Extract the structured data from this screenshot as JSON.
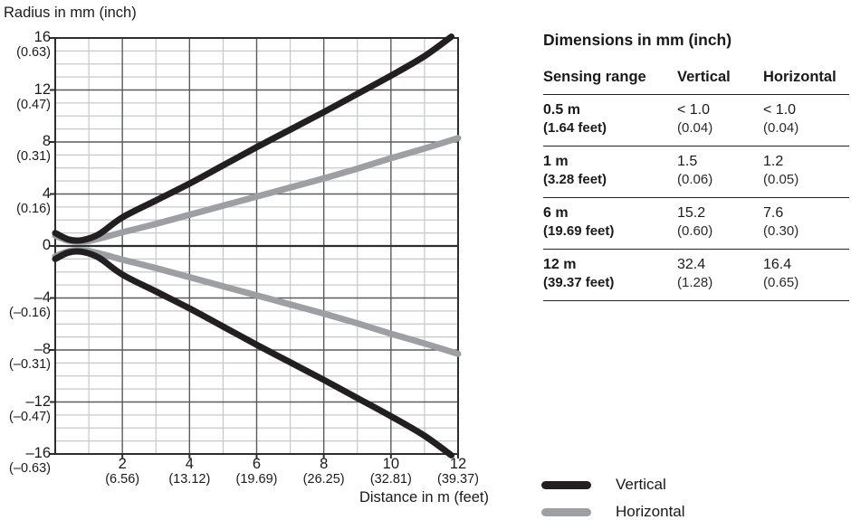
{
  "chart": {
    "title": "Radius in mm (inch)",
    "xlabel": "Distance in m (feet)",
    "y_ticks": [
      {
        "value": 16,
        "mm": "16",
        "inch": "(0.63)"
      },
      {
        "value": 12,
        "mm": "12",
        "inch": "(0.47)"
      },
      {
        "value": 8,
        "mm": "8",
        "inch": "(0.31)"
      },
      {
        "value": 4,
        "mm": "4",
        "inch": "(0.16)"
      },
      {
        "value": 0,
        "mm": "0",
        "inch": ""
      },
      {
        "value": -4,
        "mm": "–4",
        "inch": "(–0.16)"
      },
      {
        "value": -8,
        "mm": "–8",
        "inch": "(–0.31)"
      },
      {
        "value": -12,
        "mm": "–12",
        "inch": "(–0.47)"
      },
      {
        "value": -16,
        "mm": "–16",
        "inch": "(–0.63)"
      }
    ],
    "x_ticks": [
      {
        "value": 2,
        "m": "2",
        "feet": "(6.56)"
      },
      {
        "value": 4,
        "m": "4",
        "feet": "(13.12)"
      },
      {
        "value": 6,
        "m": "6",
        "feet": "(19.69)"
      },
      {
        "value": 8,
        "m": "8",
        "feet": "(26.25)"
      },
      {
        "value": 10,
        "m": "10",
        "feet": "(32.81)"
      },
      {
        "value": 12,
        "m": "12",
        "feet": "(39.37)"
      }
    ]
  },
  "chart_data": {
    "type": "line",
    "title": "Light spot radius vs sensing distance",
    "xlabel": "Distance in m (feet)",
    "ylabel": "Radius in mm (inch)",
    "xlim": [
      0,
      12
    ],
    "ylim": [
      -16,
      16
    ],
    "x_major_step": 2,
    "x_minor_step": 1,
    "y_major_step": 4,
    "y_minor_step": 1,
    "grid": true,
    "legend_position": "bottom-right",
    "mirrored_about_zero": true,
    "series": [
      {
        "name": "Vertical",
        "color": "#231f20",
        "x": [
          0,
          0.4,
          0.8,
          1.3,
          2,
          3,
          4,
          5,
          6,
          7,
          8,
          9,
          10,
          11,
          11.8
        ],
        "radius_mm": [
          1.0,
          0.5,
          0.45,
          0.9,
          2.2,
          3.5,
          4.8,
          6.2,
          7.6,
          8.95,
          10.3,
          11.7,
          13.1,
          14.6,
          16.1
        ]
      },
      {
        "name": "Horizontal",
        "color": "#9d9fa2",
        "x": [
          0,
          0.4,
          0.9,
          1.5,
          2,
          3,
          4,
          5,
          6,
          7,
          8,
          9,
          10,
          11,
          12
        ],
        "radius_mm": [
          0.8,
          0.4,
          0.35,
          0.7,
          1.05,
          1.7,
          2.4,
          3.1,
          3.8,
          4.5,
          5.2,
          5.95,
          6.75,
          7.5,
          8.3
        ]
      }
    ]
  },
  "panel": {
    "title": "Dimensions in mm (inch)",
    "table": {
      "headers": [
        "Sensing range",
        "Vertical",
        "Horizontal"
      ],
      "rows": [
        {
          "range_m": "0.5 m",
          "range_feet": "(1.64 feet)",
          "vertical_mm": "< 1.0",
          "vertical_inch": "(0.04)",
          "horizontal_mm": "< 1.0",
          "horizontal_inch": "(0.04)"
        },
        {
          "range_m": "1 m",
          "range_feet": "(3.28 feet)",
          "vertical_mm": "1.5",
          "vertical_inch": "(0.06)",
          "horizontal_mm": "1.2",
          "horizontal_inch": "(0.05)"
        },
        {
          "range_m": "6 m",
          "range_feet": "(19.69 feet)",
          "vertical_mm": "15.2",
          "vertical_inch": "(0.60)",
          "horizontal_mm": "7.6",
          "horizontal_inch": "(0.30)"
        },
        {
          "range_m": "12 m",
          "range_feet": "(39.37 feet)",
          "vertical_mm": "32.4",
          "vertical_inch": "(1.28)",
          "horizontal_mm": "16.4",
          "horizontal_inch": "(0.65)"
        }
      ]
    },
    "legend": [
      {
        "label": "Vertical",
        "color": "#231f20"
      },
      {
        "label": "Horizontal",
        "color": "#9d9fa2"
      }
    ]
  },
  "colors": {
    "curve_vertical": "#231f20",
    "curve_horizontal": "#9d9fa2",
    "grid_minor": "#c7c8ca",
    "grid_major": "#5a5b5e",
    "axis": "#2e2e30",
    "text": "#1a1a1a"
  }
}
